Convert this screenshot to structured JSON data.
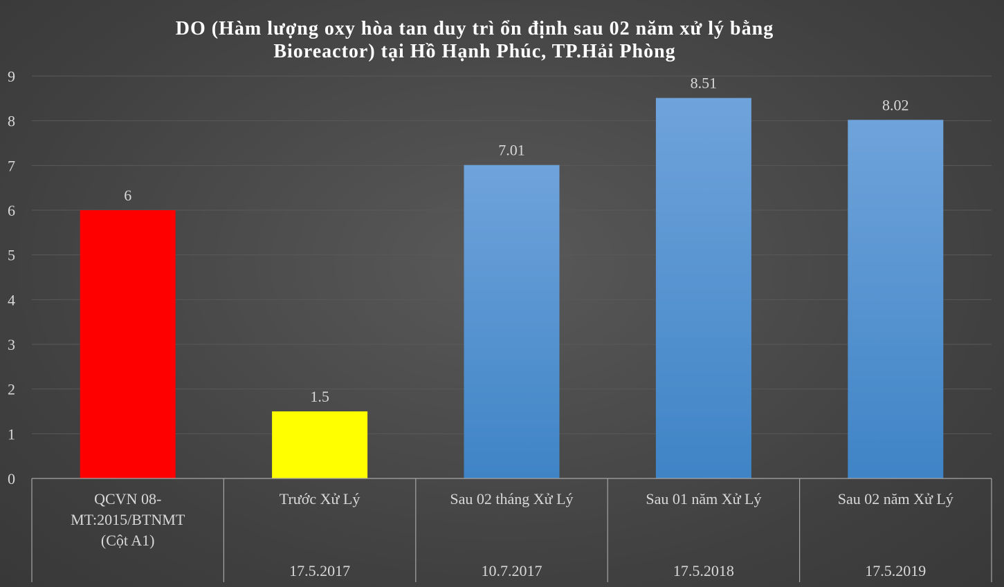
{
  "chart_data": {
    "type": "bar",
    "title": "DO (Hàm lượng oxy hòa tan duy trì ổn định sau 02 năm xử lý bằng Bioreactor) tại Hồ Hạnh Phúc, TP.Hải Phòng",
    "title_lines": [
      "DO (Hàm lượng oxy hòa tan duy trì ổn định sau 02 năm xử lý bằng",
      "Bioreactor) tại Hồ Hạnh Phúc, TP.Hải Phòng"
    ],
    "categories": [
      "QCVN 08-MT:2015/BTNMT (Cột A1)",
      "Trước Xử Lý",
      "Sau 02 tháng Xử Lý",
      "Sau 01 năm Xử Lý",
      "Sau 02 năm Xử Lý"
    ],
    "category_lines": [
      [
        "QCVN 08-",
        "MT:2015/BTNMT",
        "(Cột A1)"
      ],
      [
        "Trước Xử Lý"
      ],
      [
        "Sau 02 tháng Xử Lý"
      ],
      [
        "Sau 01 năm Xử Lý"
      ],
      [
        "Sau 02 năm Xử Lý"
      ]
    ],
    "dates": [
      "",
      "17.5.2017",
      "10.7.2017",
      "17.5.2018",
      "17.5.2019"
    ],
    "values": [
      6,
      1.5,
      7.01,
      8.51,
      8.02
    ],
    "data_labels": [
      "6",
      "1.5",
      "7.01",
      "8.51",
      "8.02"
    ],
    "bar_colors": [
      "#ff0000",
      "#ffff00",
      "#5b9bd5",
      "#5b9bd5",
      "#5b9bd5"
    ],
    "ylim": [
      0,
      9
    ],
    "yticks": [
      0,
      1,
      2,
      3,
      4,
      5,
      6,
      7,
      8,
      9
    ],
    "grid": true,
    "xlabel": "",
    "ylabel": "",
    "colors": {
      "grid": "#595959",
      "axis_line": "#a6a6a6",
      "text": "#d9d9d9",
      "title": "#ffffff"
    }
  }
}
